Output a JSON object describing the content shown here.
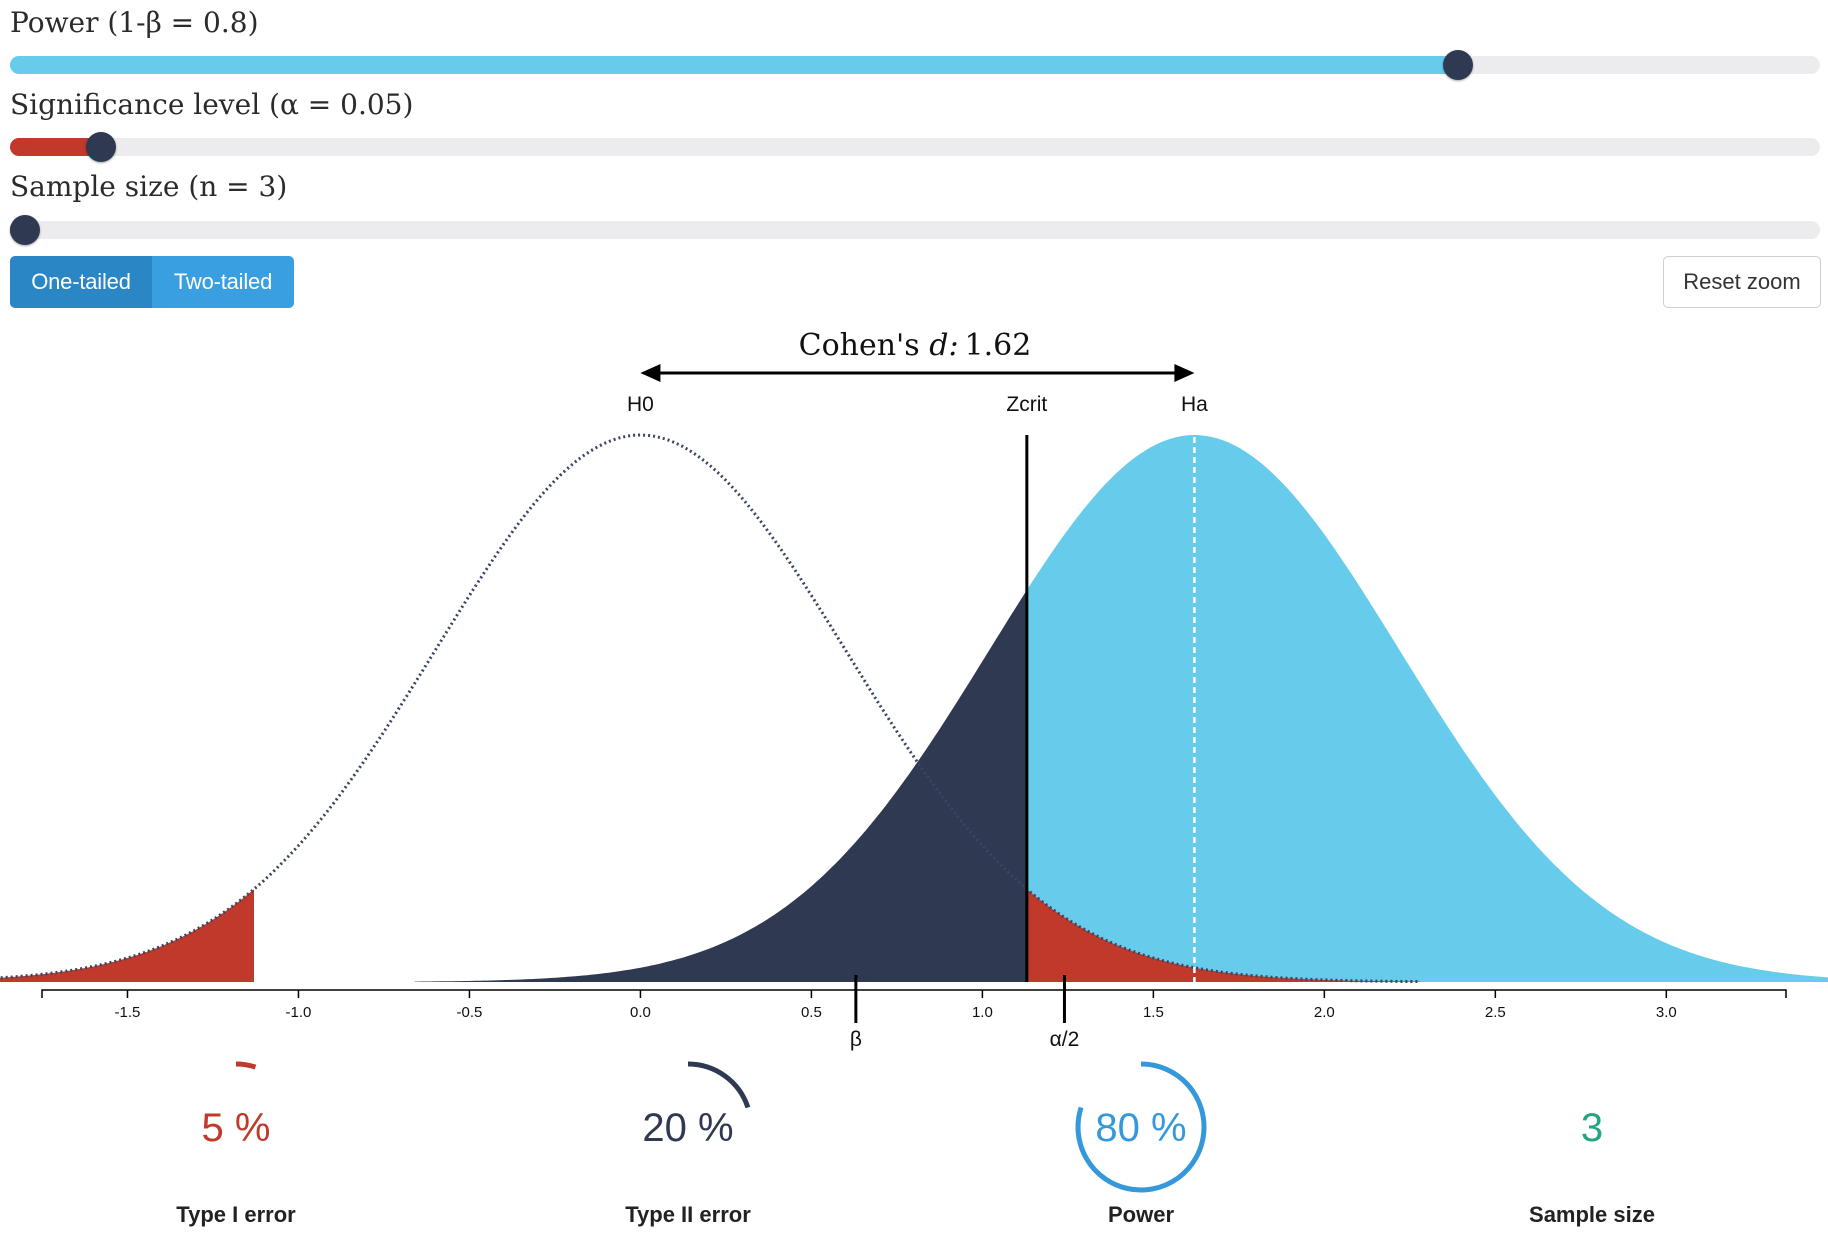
{
  "sliders": {
    "power": {
      "label": "Power (1-β = 0.8)",
      "value": 0.8,
      "range": [
        0,
        1
      ],
      "color": "#67cbec"
    },
    "alpha": {
      "label": "Significance level (α = 0.05)",
      "value": 0.05,
      "range": [
        0,
        1
      ],
      "color": "#c0392b"
    },
    "sample": {
      "label": "Sample size (n = 3)",
      "value": 3,
      "color": "#23a584"
    }
  },
  "tails": {
    "one_label": "One-tailed",
    "two_label": "Two-tailed",
    "selected": "one"
  },
  "reset_zoom_label": "Reset zoom",
  "chart_data": {
    "type": "area",
    "cohen_prefix": "Cohen's ",
    "cohen_symbol": "d:",
    "cohen_value": "1.62",
    "effect_size": 1.62,
    "sd": 0.6,
    "critical_value": 1.13,
    "beta_marker": 0.63,
    "alpha2_marker": 1.24,
    "lower_critical": -1.13,
    "xlim": [
      -1.75,
      3.35
    ],
    "ticks": [
      -1.5,
      -1.0,
      -0.5,
      0.0,
      0.5,
      1.0,
      1.5,
      2.0,
      2.5,
      3.0
    ],
    "tick_labels": [
      "-1.5",
      "-1.0",
      "-0.5",
      "0.0",
      "0.5",
      "1.0",
      "1.5",
      "2.0",
      "2.5",
      "3.0"
    ],
    "labels": {
      "h0": "H0",
      "ha": "Ha",
      "zcrit": "Zcrit",
      "beta": "β",
      "alpha2": "α/2"
    },
    "colors": {
      "power": "#67cbec",
      "type2": "#2f3a52",
      "type1": "#c0392b",
      "h0_line": "#3a4660"
    }
  },
  "stats": [
    {
      "value_text": "5 %",
      "fraction": 0.05,
      "label": "Type I error",
      "color": "#c0392b"
    },
    {
      "value_text": "20 %",
      "fraction": 0.2,
      "label": "Type II error",
      "color": "#2f3a52"
    },
    {
      "value_text": "80 %",
      "fraction": 0.8,
      "label": "Power",
      "color": "#3498db"
    },
    {
      "value_text": "3",
      "fraction": 0,
      "label": "Sample size",
      "color": "#23a584"
    }
  ]
}
